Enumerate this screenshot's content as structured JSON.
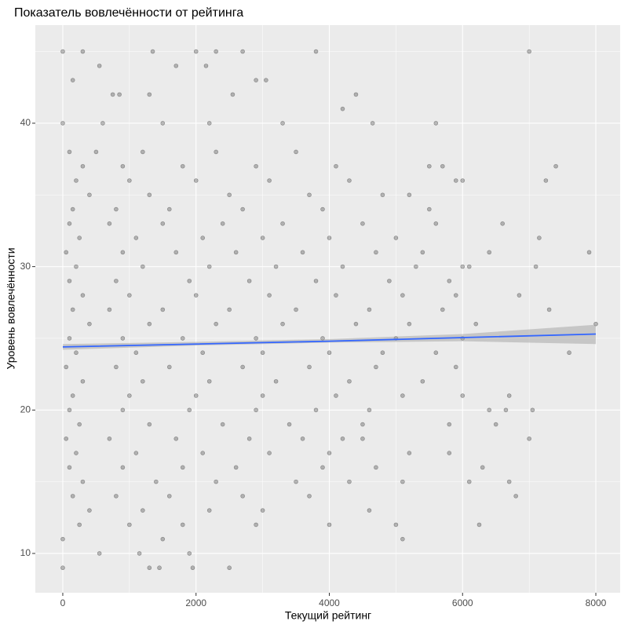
{
  "chart_data": {
    "type": "scatter",
    "title": "Показатель вовлечённости от рейтинга",
    "x_label": "Текущий рейтинг",
    "y_label": "Уровень вовлечённости",
    "xlim": [
      -412,
      8365
    ],
    "ylim": [
      7.26,
      46.84
    ],
    "xticks": [
      0,
      2000,
      4000,
      6000,
      8000
    ],
    "yticks": [
      10,
      20,
      30,
      40
    ],
    "x_minor_grid": [
      1000,
      3000,
      5000,
      7000
    ],
    "y_minor_grid": [
      15,
      25,
      35,
      45
    ],
    "grid": true,
    "series": [
      {
        "color": "#000000",
        "x": [
          0,
          300,
          1350,
          2000,
          2300,
          2700,
          3800,
          7000,
          150,
          550,
          1700,
          2150,
          2550,
          2900,
          3050,
          4400,
          4200,
          1300,
          750,
          850,
          0,
          600,
          1500,
          2200,
          3300,
          4650,
          5600,
          7400,
          7250,
          7150,
          7900,
          7100,
          6850,
          7300,
          7600,
          8000,
          6700,
          7050,
          6650,
          6500,
          7000,
          6300,
          6700,
          6100,
          6800,
          6250,
          5100,
          5000,
          4000,
          0,
          0,
          1300,
          1450,
          1950,
          2500,
          1900,
          550,
          1150,
          1500,
          4500,
          5800,
          6100,
          6600,
          6400,
          5200,
          6000,
          5500,
          5700,
          100,
          500,
          1200,
          2300,
          3500,
          300,
          900,
          1800,
          2900,
          4100,
          200,
          1000,
          2000,
          3100,
          4300,
          5900,
          400,
          1300,
          2500,
          3700,
          4800,
          150,
          800,
          1600,
          2700,
          3900,
          5500,
          100,
          700,
          1500,
          2400,
          3300,
          4500,
          5600,
          250,
          1100,
          2100,
          3000,
          4000,
          5000,
          50,
          900,
          1700,
          2600,
          3600,
          4700,
          5400,
          200,
          1200,
          2200,
          3200,
          4200,
          5300,
          6000,
          100,
          800,
          1900,
          2800,
          3800,
          4900,
          5800,
          300,
          1000,
          2000,
          3100,
          4100,
          5100,
          5900,
          150,
          700,
          1500,
          2500,
          3500,
          4600,
          5700,
          400,
          1300,
          2300,
          3300,
          4400,
          5200,
          6200,
          100,
          900,
          1800,
          2900,
          3900,
          5000,
          6000,
          200,
          1100,
          2100,
          3000,
          4000,
          4800,
          5600,
          50,
          800,
          1600,
          2700,
          3700,
          4700,
          5900,
          300,
          1200,
          2200,
          3200,
          4300,
          5400,
          150,
          1000,
          2000,
          3000,
          4100,
          5100,
          6000,
          100,
          900,
          1900,
          2900,
          3800,
          4600,
          6400,
          250,
          1300,
          2400,
          3400,
          4500,
          5800,
          50,
          700,
          1700,
          2800,
          3600,
          4200,
          200,
          1100,
          2100,
          3100,
          4000,
          5200,
          100,
          900,
          1800,
          2600,
          3900,
          4700,
          300,
          1400,
          2300,
          3500,
          4300,
          5100,
          150,
          800,
          1600,
          2700,
          3700,
          400,
          1200,
          2200,
          3000,
          4600,
          250,
          1000,
          1800,
          2900
        ],
        "values": [
          45,
          45,
          45,
          45,
          45,
          45,
          45,
          45,
          43,
          44,
          44,
          44,
          42,
          43,
          43,
          42,
          41,
          42,
          42,
          42,
          40,
          40,
          40,
          40,
          40,
          40,
          40,
          37,
          36,
          32,
          31,
          30,
          28,
          27,
          24,
          26,
          21,
          20,
          20,
          19,
          18,
          16,
          15,
          15,
          14,
          12,
          11,
          12,
          12,
          11,
          9,
          9,
          9,
          9,
          9,
          10,
          10,
          10,
          11,
          18,
          17,
          30,
          33,
          31,
          35,
          36,
          37,
          37,
          38,
          38,
          38,
          38,
          38,
          37,
          37,
          37,
          37,
          37,
          36,
          36,
          36,
          36,
          36,
          36,
          35,
          35,
          35,
          35,
          35,
          34,
          34,
          34,
          34,
          34,
          34,
          33,
          33,
          33,
          33,
          33,
          33,
          33,
          32,
          32,
          32,
          32,
          32,
          32,
          31,
          31,
          31,
          31,
          31,
          31,
          31,
          30,
          30,
          30,
          30,
          30,
          30,
          30,
          29,
          29,
          29,
          29,
          29,
          29,
          29,
          28,
          28,
          28,
          28,
          28,
          28,
          28,
          27,
          27,
          27,
          27,
          27,
          27,
          27,
          26,
          26,
          26,
          26,
          26,
          26,
          26,
          25,
          25,
          25,
          25,
          25,
          25,
          25,
          24,
          24,
          24,
          24,
          24,
          24,
          24,
          23,
          23,
          23,
          23,
          23,
          23,
          23,
          22,
          22,
          22,
          22,
          22,
          22,
          21,
          21,
          21,
          21,
          21,
          21,
          21,
          20,
          20,
          20,
          20,
          20,
          20,
          20,
          19,
          19,
          19,
          19,
          19,
          19,
          18,
          18,
          18,
          18,
          18,
          18,
          17,
          17,
          17,
          17,
          17,
          17,
          16,
          16,
          16,
          16,
          16,
          16,
          15,
          15,
          15,
          15,
          15,
          15,
          14,
          14,
          14,
          14,
          14,
          13,
          13,
          13,
          13,
          13,
          12,
          12,
          12,
          12
        ]
      }
    ],
    "trend": {
      "color": "#3366ff",
      "band_color": "#999999",
      "x": [
        0,
        2000,
        4000,
        6000,
        8000
      ],
      "values": [
        24.4,
        24.6,
        24.8,
        25.05,
        25.3
      ],
      "lower": [
        24.2,
        24.5,
        24.7,
        24.8,
        24.6
      ],
      "upper": [
        24.6,
        24.75,
        24.95,
        25.3,
        25.95
      ]
    }
  }
}
